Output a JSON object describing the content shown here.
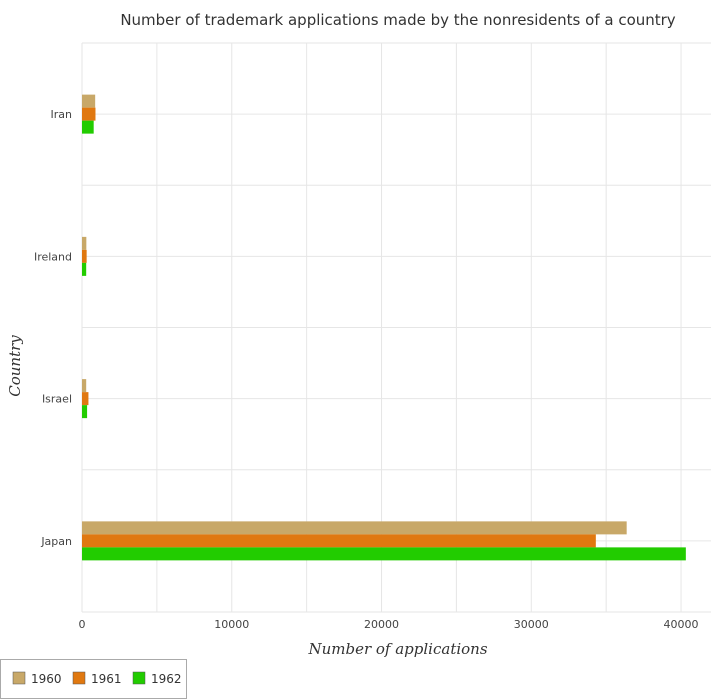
{
  "chart_data": {
    "type": "bar",
    "orientation": "horizontal",
    "title": "Number of trademark applications made by the nonresidents of a country",
    "xlabel": "Number of applications",
    "ylabel": "Country",
    "categories": [
      "Iran",
      "Ireland",
      "Israel",
      "Japan"
    ],
    "series": [
      {
        "name": "1960",
        "color": "#c8a868",
        "values": [
          880,
          290,
          280,
          36370
        ]
      },
      {
        "name": "1961",
        "color": "#e07810",
        "values": [
          900,
          310,
          430,
          34310
        ]
      },
      {
        "name": "1962",
        "color": "#22cc00",
        "values": [
          780,
          280,
          340,
          40320
        ]
      }
    ],
    "xlim": [
      0,
      42000
    ],
    "xticks": [
      0,
      10000,
      20000,
      30000,
      40000
    ],
    "xtick_labels": [
      "0",
      "10000",
      "20000",
      "30000",
      "40000"
    ],
    "grid": true,
    "legend_position": "bottom-left"
  }
}
